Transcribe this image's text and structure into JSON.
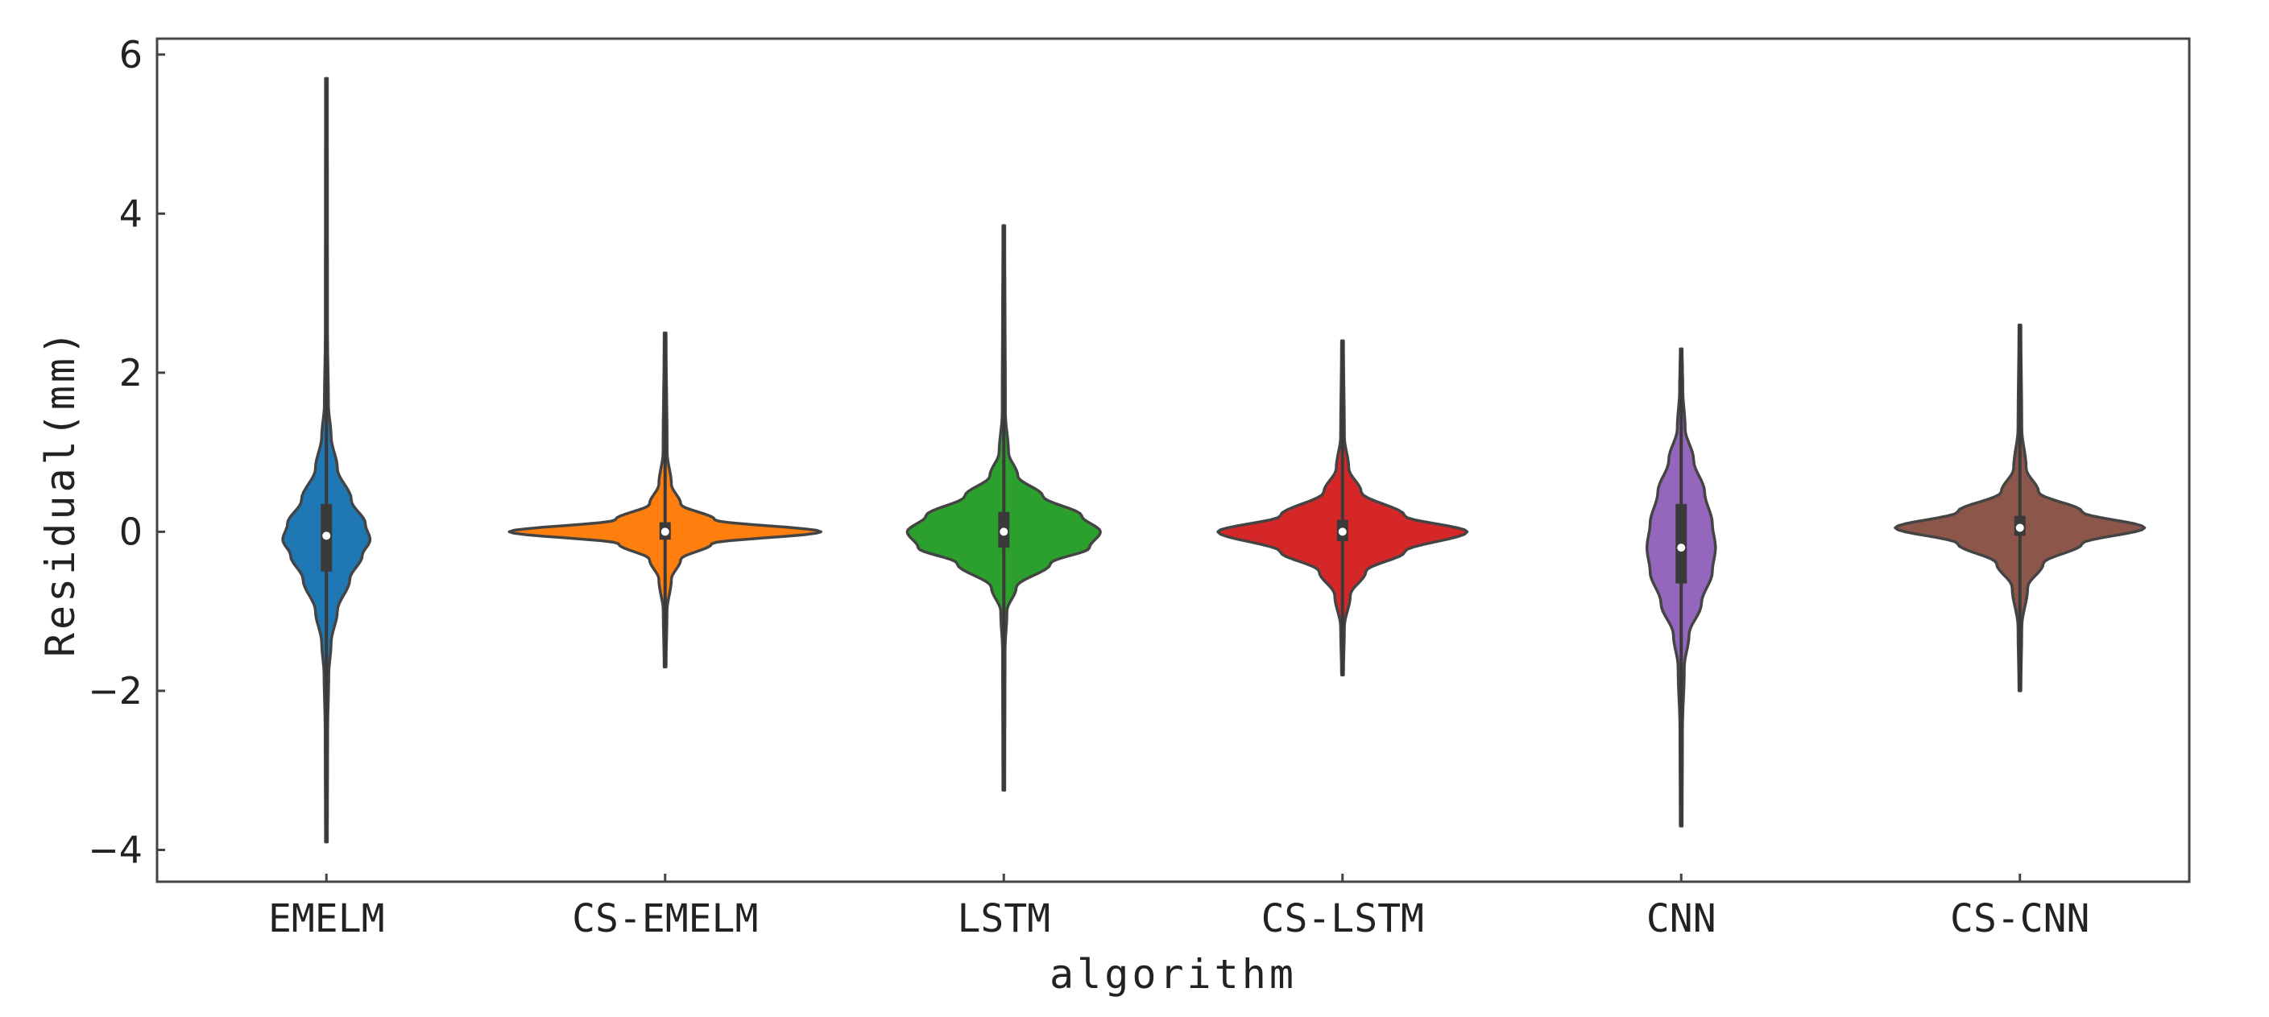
{
  "chart_data": {
    "type": "violin",
    "xlabel": "algorithm",
    "ylabel": "Residual(mm)",
    "ylim": [
      -4.4,
      6.2
    ],
    "yticks": [
      -4,
      -2,
      0,
      2,
      4,
      6
    ],
    "ytick_labels": [
      "−4",
      "−2",
      "0",
      "2",
      "4",
      "6"
    ],
    "grid": false,
    "legend": "none",
    "categories": [
      "EMELM",
      "CS-EMELM",
      "LSTM",
      "CS-LSTM",
      "CNN",
      "CS-CNN"
    ],
    "series": [
      {
        "category": "EMELM",
        "color": "#1f77b4",
        "min": -3.9,
        "max": 5.7,
        "q1": -0.5,
        "median": -0.05,
        "q3": 0.35,
        "density": [
          [
            -3.9,
            0.006
          ],
          [
            -2.5,
            0.008
          ],
          [
            -1.8,
            0.015
          ],
          [
            -1.4,
            0.03
          ],
          [
            -1.0,
            0.07
          ],
          [
            -0.6,
            0.15
          ],
          [
            -0.3,
            0.23
          ],
          [
            -0.1,
            0.28
          ],
          [
            0.1,
            0.25
          ],
          [
            0.4,
            0.16
          ],
          [
            0.8,
            0.07
          ],
          [
            1.2,
            0.03
          ],
          [
            1.6,
            0.013
          ],
          [
            2.5,
            0.007
          ],
          [
            5.7,
            0.006
          ]
        ]
      },
      {
        "category": "CS-EMELM",
        "color": "#ff7f0e",
        "min": -1.7,
        "max": 2.5,
        "q1": -0.1,
        "median": 0.0,
        "q3": 0.12,
        "density": [
          [
            -1.7,
            0.006
          ],
          [
            -1.0,
            0.012
          ],
          [
            -0.6,
            0.04
          ],
          [
            -0.35,
            0.1
          ],
          [
            -0.15,
            0.3
          ],
          [
            0.0,
            1.0
          ],
          [
            0.15,
            0.32
          ],
          [
            0.35,
            0.1
          ],
          [
            0.6,
            0.04
          ],
          [
            1.0,
            0.013
          ],
          [
            2.5,
            0.006
          ]
        ]
      },
      {
        "category": "LSTM",
        "color": "#2ca02c",
        "min": -3.25,
        "max": 3.85,
        "q1": -0.2,
        "median": 0.0,
        "q3": 0.25,
        "density": [
          [
            -3.25,
            0.006
          ],
          [
            -1.5,
            0.008
          ],
          [
            -1.0,
            0.02
          ],
          [
            -0.7,
            0.08
          ],
          [
            -0.4,
            0.3
          ],
          [
            -0.2,
            0.55
          ],
          [
            0.0,
            0.62
          ],
          [
            0.2,
            0.5
          ],
          [
            0.45,
            0.25
          ],
          [
            0.7,
            0.09
          ],
          [
            1.0,
            0.03
          ],
          [
            1.5,
            0.01
          ],
          [
            3.85,
            0.006
          ]
        ]
      },
      {
        "category": "CS-LSTM",
        "color": "#d62728",
        "min": -1.8,
        "max": 2.4,
        "q1": -0.12,
        "median": 0.0,
        "q3": 0.15,
        "density": [
          [
            -1.8,
            0.006
          ],
          [
            -1.2,
            0.012
          ],
          [
            -0.8,
            0.05
          ],
          [
            -0.5,
            0.15
          ],
          [
            -0.25,
            0.4
          ],
          [
            0.0,
            0.8
          ],
          [
            0.2,
            0.4
          ],
          [
            0.5,
            0.12
          ],
          [
            0.8,
            0.04
          ],
          [
            1.2,
            0.012
          ],
          [
            2.4,
            0.006
          ]
        ]
      },
      {
        "category": "CNN",
        "color": "#9467bd",
        "min": -3.7,
        "max": 2.3,
        "q1": -0.65,
        "median": -0.2,
        "q3": 0.35,
        "density": [
          [
            -3.7,
            0.006
          ],
          [
            -2.5,
            0.008
          ],
          [
            -1.7,
            0.02
          ],
          [
            -1.3,
            0.05
          ],
          [
            -0.9,
            0.13
          ],
          [
            -0.5,
            0.2
          ],
          [
            -0.2,
            0.22
          ],
          [
            0.1,
            0.2
          ],
          [
            0.5,
            0.15
          ],
          [
            0.9,
            0.08
          ],
          [
            1.3,
            0.025
          ],
          [
            1.8,
            0.01
          ],
          [
            2.3,
            0.006
          ]
        ]
      },
      {
        "category": "CS-CNN",
        "color": "#8c564b",
        "min": -2.0,
        "max": 2.6,
        "q1": -0.05,
        "median": 0.05,
        "q3": 0.2,
        "density": [
          [
            -2.0,
            0.006
          ],
          [
            -1.2,
            0.012
          ],
          [
            -0.7,
            0.05
          ],
          [
            -0.4,
            0.15
          ],
          [
            -0.15,
            0.4
          ],
          [
            0.05,
            0.8
          ],
          [
            0.25,
            0.4
          ],
          [
            0.5,
            0.12
          ],
          [
            0.8,
            0.04
          ],
          [
            1.3,
            0.012
          ],
          [
            2.6,
            0.006
          ]
        ]
      }
    ]
  }
}
